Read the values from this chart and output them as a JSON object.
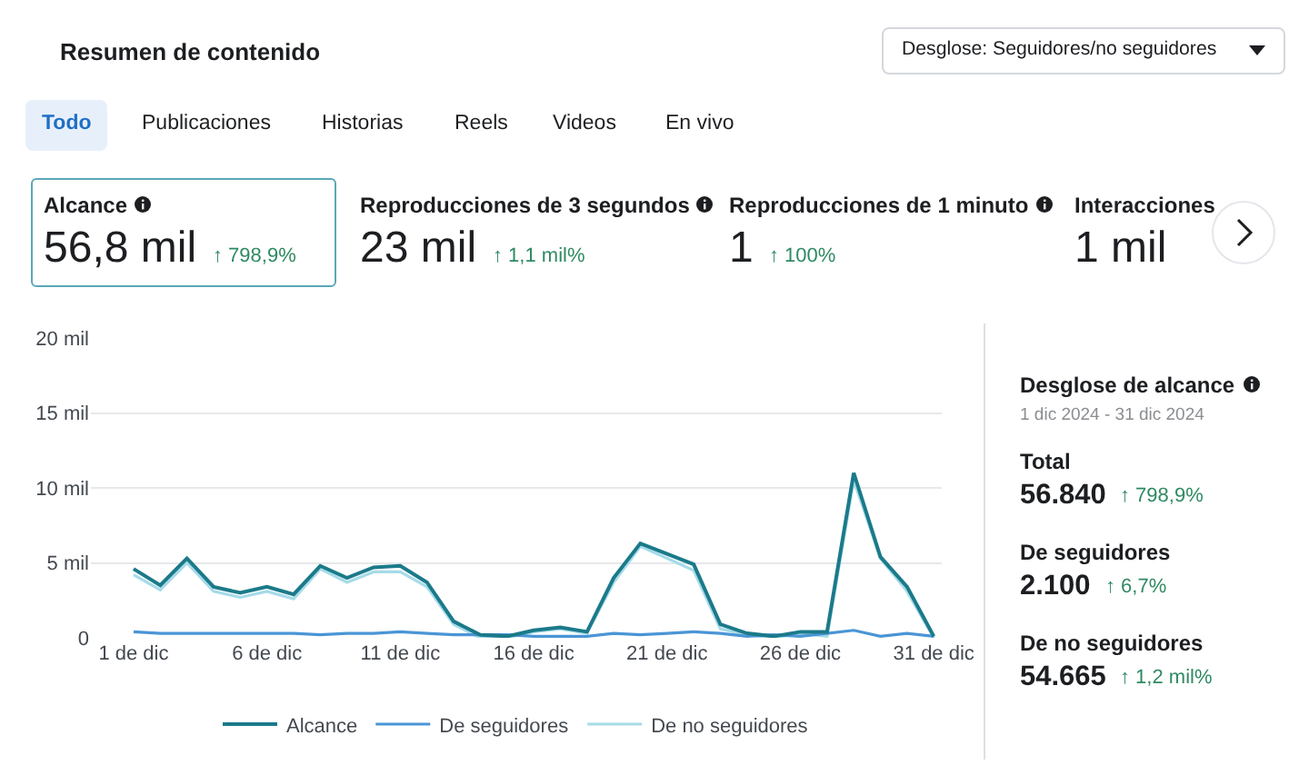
{
  "chart_data": [
    {
      "type": "other",
      "title": "Resumen de contenido",
      "annotations": [
        "Todo",
        "Publicaciones",
        "Historias",
        "Reels",
        "Videos",
        "En vivo",
        "Desglose: Seguidores/no seguidores",
        "Alcance",
        "56,8 mil",
        "↑ 798,9%",
        "Reproducciones de 3 segundos",
        "23 mil",
        "↑ 1,1 mil%",
        "Reproducciones de 1 minuto",
        "1",
        "↑ 100%",
        "Interacciones",
        "1 mil"
      ]
    },
    {
      "type": "line",
      "x": [
        1,
        2,
        3,
        4,
        5,
        6,
        7,
        8,
        9,
        10,
        11,
        12,
        13,
        14,
        15,
        16,
        17,
        18,
        19,
        20,
        21,
        22,
        23,
        24,
        25,
        26,
        27,
        28,
        29,
        30,
        31
      ],
      "series": [
        {
          "name": "Alcance",
          "color": "#1b7a8a",
          "values": [
            4.6,
            3.5,
            5.3,
            3.4,
            3.0,
            3.4,
            2.9,
            4.8,
            4.0,
            4.7,
            4.8,
            3.7,
            1.1,
            0.2,
            0.1,
            0.5,
            0.7,
            0.4,
            4.0,
            6.3,
            5.6,
            4.9,
            0.9,
            0.3,
            0.1,
            0.4,
            0.4,
            11.0,
            5.4,
            3.4,
            0.1
          ]
        },
        {
          "name": "De seguidores",
          "color": "#4a95d6",
          "values": [
            0.4,
            0.3,
            0.3,
            0.3,
            0.3,
            0.3,
            0.3,
            0.2,
            0.3,
            0.3,
            0.4,
            0.3,
            0.2,
            0.2,
            0.2,
            0.1,
            0.1,
            0.1,
            0.3,
            0.2,
            0.3,
            0.4,
            0.3,
            0.1,
            0.2,
            0.1,
            0.3,
            0.5,
            0.1,
            0.3,
            0.1
          ]
        },
        {
          "name": "De no seguidores",
          "color": "#a6dbe9",
          "values": [
            4.2,
            3.2,
            5.0,
            3.1,
            2.7,
            3.1,
            2.6,
            4.6,
            3.7,
            4.4,
            4.4,
            3.4,
            0.9,
            0,
            0,
            0.4,
            0.6,
            0.3,
            3.7,
            6.1,
            5.3,
            4.5,
            0.6,
            0.2,
            0,
            0.3,
            0.1,
            10.5,
            5.3,
            3.1,
            0
          ]
        }
      ],
      "xlim": [
        -0.6,
        31.3
      ],
      "xticks": [
        {
          "value": 1,
          "label": "1 de dic"
        },
        {
          "value": 6,
          "label": "6 de dic"
        },
        {
          "value": 11,
          "label": "11 de dic"
        },
        {
          "value": 16,
          "label": "16 de dic"
        },
        {
          "value": 21,
          "label": "21 de dic"
        },
        {
          "value": 26,
          "label": "26 de dic"
        },
        {
          "value": 31,
          "label": "31 de dic"
        }
      ],
      "ylim": [
        0,
        20
      ],
      "yticks": [
        0,
        {
          "value": 5,
          "label": "5 mil"
        },
        {
          "value": 10,
          "label": "10 mil"
        },
        {
          "value": 15,
          "label": "15 mil"
        },
        {
          "value": 20,
          "label": "20 mil"
        }
      ],
      "grid": "y",
      "legend": "bottom",
      "marker": "none",
      "line_style": "solid"
    },
    {
      "type": "other",
      "title": "Desglose de alcance",
      "subtitle": "1 dic 2024 - 31 dic 2024",
      "annotations": [
        "Total",
        "56.840",
        "↑ 798,9%",
        "De seguidores",
        "2.100",
        "↑ 6,7%",
        "De no seguidores",
        "54.665",
        "↑ 1,2 mil%"
      ]
    }
  ]
}
